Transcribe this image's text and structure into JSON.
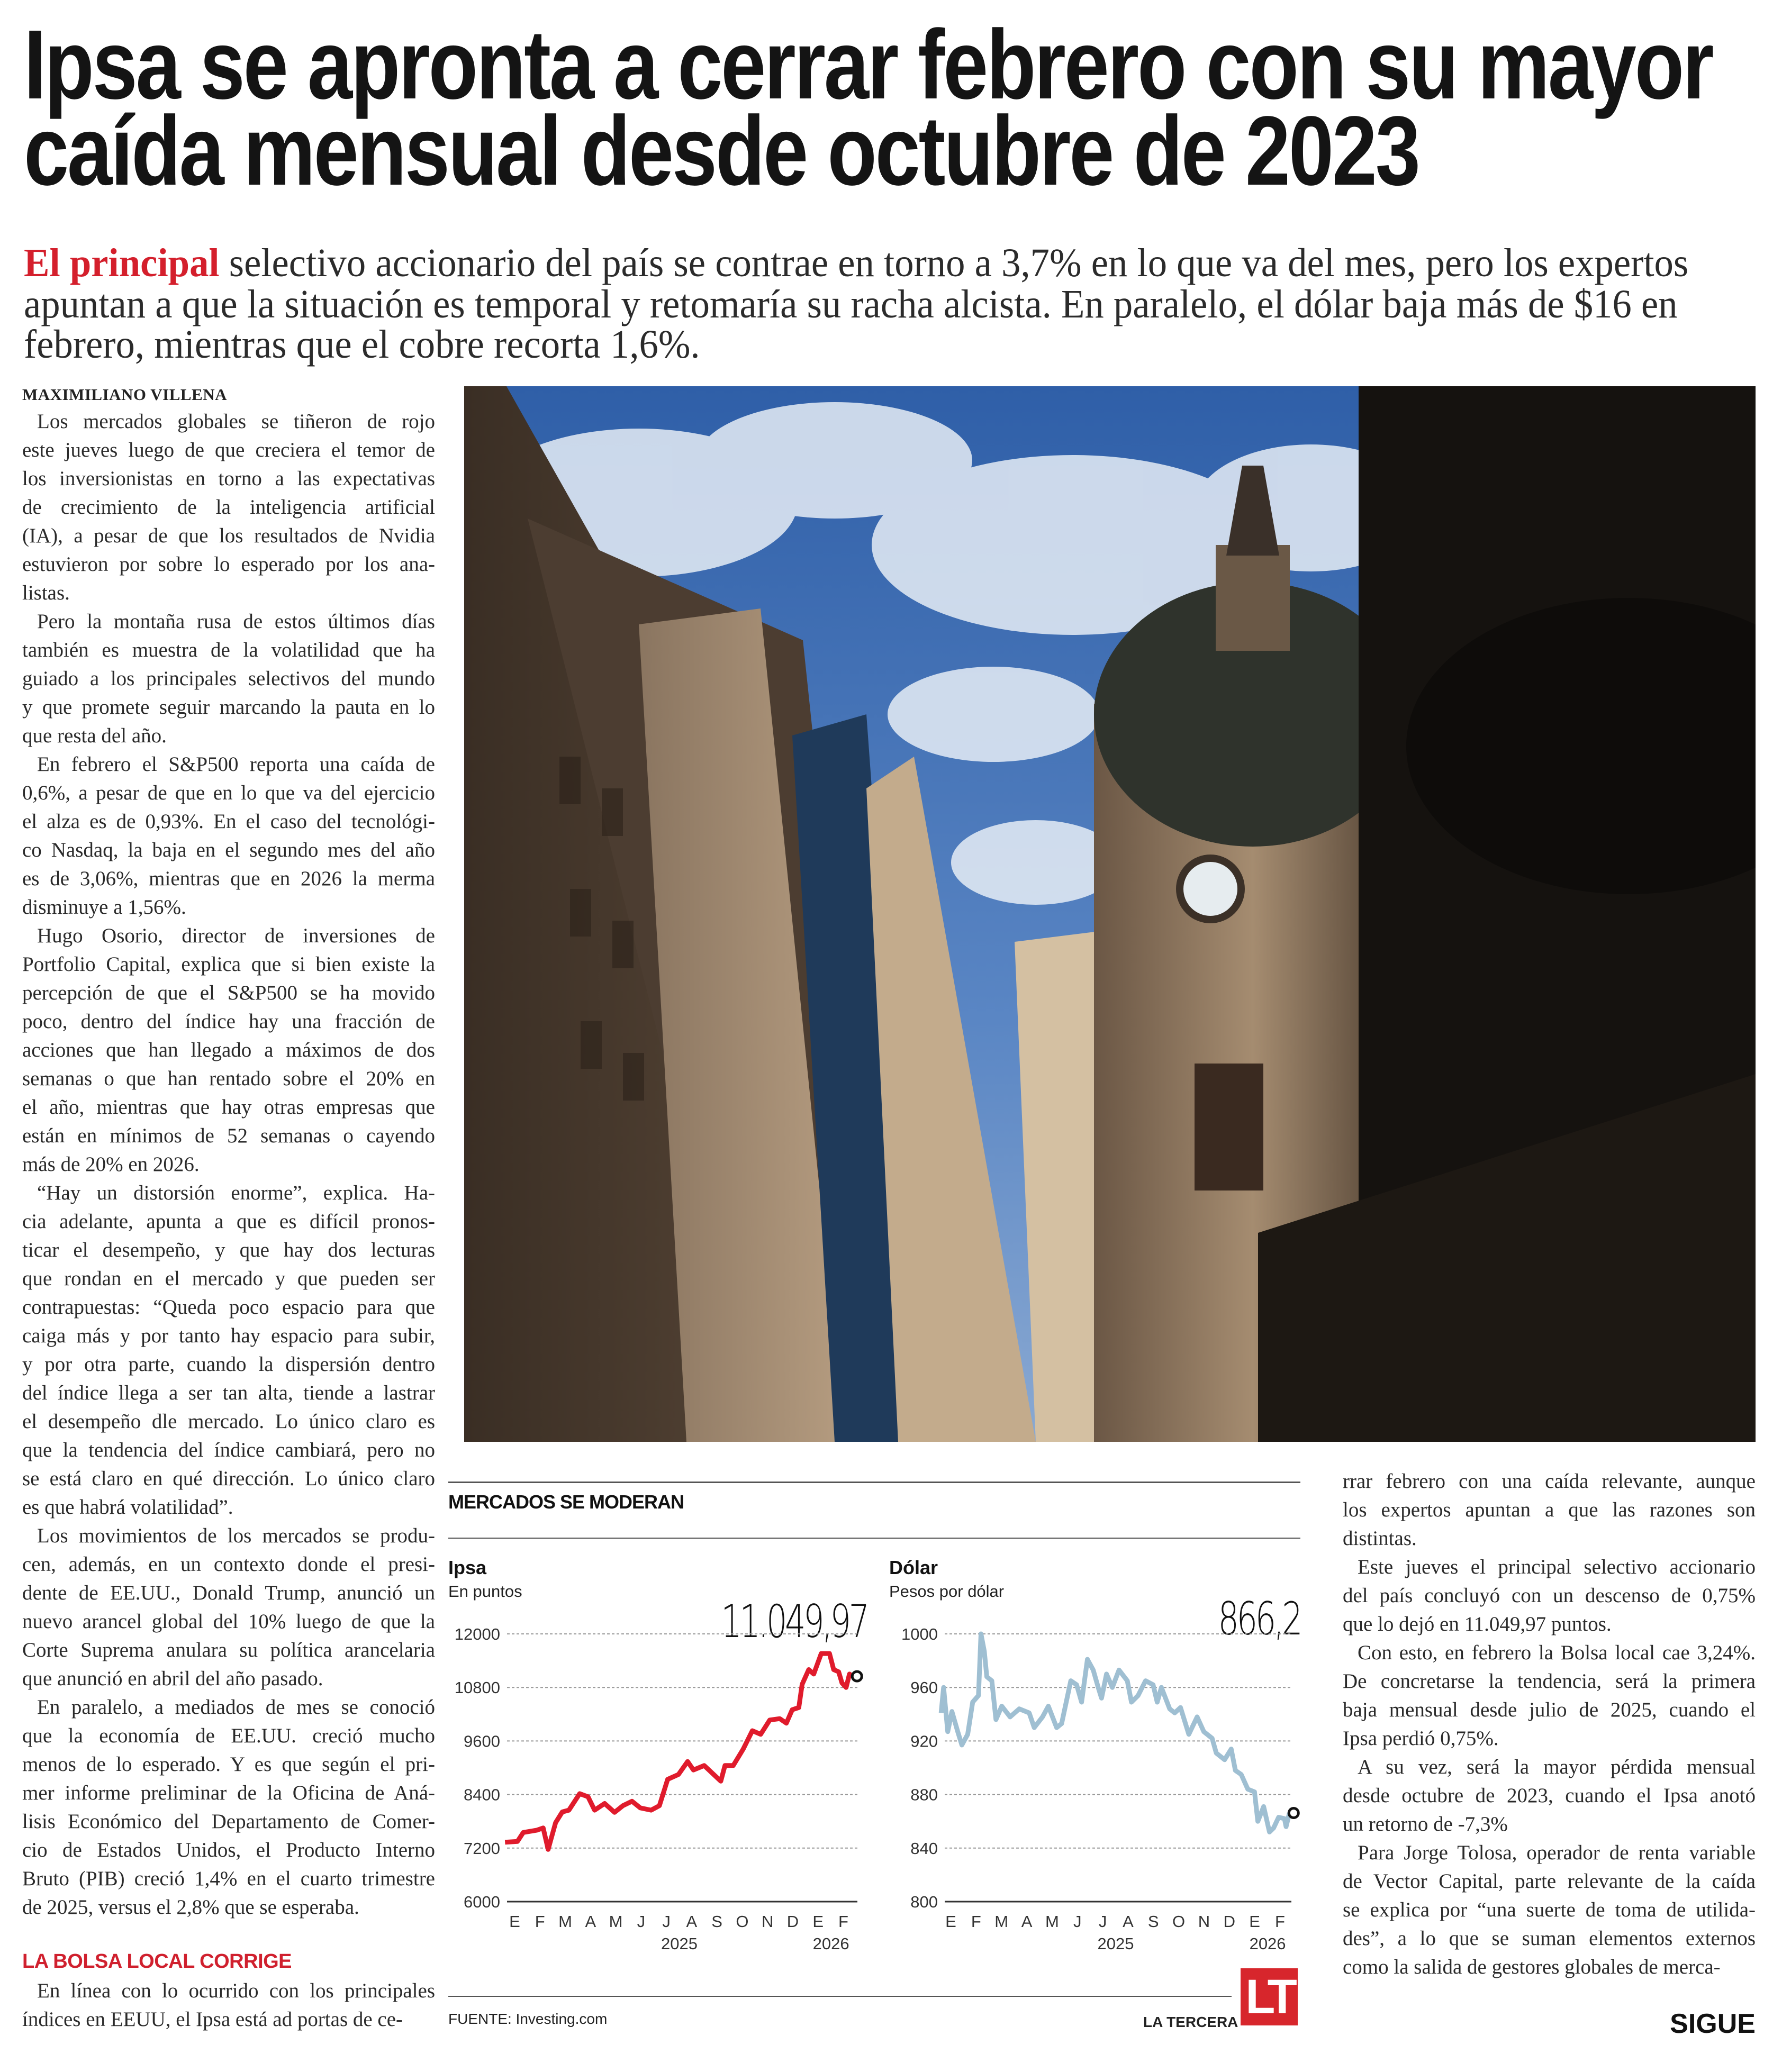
{
  "headline": {
    "lines": [
      "Ipsa se apronta a cerrar febrero con su mayor",
      "caída mensual desde octubre de 2023"
    ]
  },
  "subtitle": {
    "lead": "El principal",
    "lines": [
      " selectivo accionario del país se contrae en torno a 3,7% en lo que va del mes, pero los expertos",
      "apuntan a que la situación es temporal y retomaría su racha alcista. En paralelo, el dólar baja más de $16 en",
      "febrero, mientras que el cobre recorta 1,6%."
    ],
    "lead_color": "#d41f2c"
  },
  "byline": "MAXIMILIANO VILLENA",
  "left_column": [
    [
      "Los mercados globales se tiñeron de rojo",
      "este jueves luego de que creciera el temor de",
      "los inversionistas en torno a las expectativas",
      "de crecimiento de la inteligencia artificial",
      "(IA), a pesar de que los resultados de Nvidia",
      "estuvieron por sobre lo esperado por los ana-",
      "listas."
    ],
    [
      "Pero la montaña rusa de estos últimos días",
      "también es muestra de la volatilidad que ha",
      "guiado a los principales selectivos del mundo",
      "y que promete seguir marcando la pauta en lo",
      "que resta del año."
    ],
    [
      "En febrero el S&P500 reporta una caída de",
      "0,6%, a pesar de que en lo que va del ejercicio",
      "el alza es de 0,93%. En el caso del tecnológi-",
      "co Nasdaq, la baja en el segundo mes del año",
      "es de 3,06%, mientras que en 2026 la merma",
      "disminuye a 1,56%."
    ],
    [
      "Hugo Osorio, director de inversiones de",
      "Portfolio Capital, explica que si bien existe la",
      "percepción de que el S&P500 se ha movido",
      "poco, dentro del índice hay una fracción de",
      "acciones que han llegado a máximos de dos",
      "semanas o que han rentado sobre el 20% en",
      "el año, mientras que hay otras empresas que",
      "están en mínimos de 52 semanas o cayendo",
      "más de 20% en 2026."
    ],
    [
      "“Hay un distorsión enorme”, explica. Ha-",
      "cia adelante, apunta a que es difícil pronos-",
      "ticar el desempeño, y que hay dos lecturas",
      "que rondan en el mercado y que pueden ser",
      "contrapuestas: “Queda poco espacio para que",
      "caiga más y por tanto hay espacio para subir,",
      "y por otra parte, cuando la dispersión dentro",
      "del índice llega a ser tan alta, tiende a lastrar",
      "el desempeño dle mercado. Lo único claro es",
      "que la tendencia del índice cambiará, pero no",
      "se está claro en qué dirección. Lo único claro",
      "es que habrá volatilidad”."
    ],
    [
      "Los movimientos de los mercados se produ-",
      "cen, además, en un contexto donde el presi-",
      "dente de EE.UU., Donald Trump, anunció un",
      "nuevo arancel global del 10% luego de que la",
      "Corte Suprema anulara su política arancelaria",
      "que anunció en abril del año pasado."
    ],
    [
      "En paralelo, a mediados de mes se conoció",
      "que la economía de EE.UU. creció mucho",
      "menos de lo esperado. Y es que según el pri-",
      "mer informe preliminar de la Oficina de Aná-",
      "lisis Económico del Departamento de Comer-",
      "cio de Estados Unidos, el Producto Interno",
      "Bruto (PIB) creció 1,4% en el cuarto trimestre",
      "de 2025, versus el 2,8% que se esperaba."
    ]
  ],
  "subhead": "LA BOLSA LOCAL CORRIGE",
  "subhead_color": "#d0202e",
  "left_column_after_subhead": [
    [
      "En línea con lo ocurrido con los principales",
      "índices en EEUU, el Ipsa está ad portas de ce-"
    ]
  ],
  "right_column": [
    [
      "rrar febrero con una caída relevante, aunque",
      "los expertos apuntan a que las razones son",
      "distintas."
    ],
    [
      "Este jueves el principal selectivo accionario",
      "del país concluyó con un descenso de 0,75%",
      "que lo dejó en 11.049,97 puntos."
    ],
    [
      "Con esto, en febrero la Bolsa local cae 3,24%.",
      "De concretarse la tendencia, será la primera",
      "baja mensual desde julio de 2025, cuando el",
      "Ipsa perdió 0,75%."
    ],
    [
      "A su vez, será la mayor pérdida mensual",
      "desde octubre de 2023, cuando el Ipsa anotó",
      "un retorno de -7,3%"
    ],
    [
      "Para Jorge Tolosa, operador de renta variable",
      "de Vector Capital, parte relevante de la caída",
      "se explica por “una suerte de toma de utilida-",
      "des”, a lo que se suman elementos externos",
      "como la salida de gestores globales de merca-"
    ]
  ],
  "infographic": {
    "title": "MERCADOS SE MODERAN",
    "source": "FUENTE: Investing.com",
    "brand": "LA TERCERA",
    "logo_text": "LT",
    "logo_color": "#d7262c"
  },
  "chart_data": [
    {
      "type": "line",
      "title": "Ipsa",
      "subtitle": "En puntos",
      "latest_label": "11.049,97",
      "color": "#e01b2c",
      "ylim": [
        6000,
        12000
      ],
      "yticks": [
        "12000",
        "10800",
        "9600",
        "8400",
        "7200",
        "6000"
      ],
      "ytick_values": [
        12000,
        10800,
        9600,
        8400,
        7200,
        6000
      ],
      "xtick_labels": [
        "E",
        "F",
        "M",
        "A",
        "M",
        "J",
        "J",
        "A",
        "S",
        "O",
        "N",
        "D",
        "E",
        "F"
      ],
      "year_labels": [
        "2025",
        "2026"
      ],
      "grid": true,
      "x": [
        "2025-01-03",
        "2025-01-18",
        "2025-01-25",
        "2025-02-10",
        "2025-02-18",
        "2025-02-24",
        "2025-03-05",
        "2025-03-13",
        "2025-03-21",
        "2025-04-03",
        "2025-04-13",
        "2025-04-21",
        "2025-05-03",
        "2025-05-15",
        "2025-05-25",
        "2025-06-05",
        "2025-06-15",
        "2025-06-28",
        "2025-07-08",
        "2025-07-18",
        "2025-07-31",
        "2025-08-11",
        "2025-08-18",
        "2025-08-31",
        "2025-09-20",
        "2025-09-25",
        "2025-10-05",
        "2025-10-17",
        "2025-10-28",
        "2025-11-07",
        "2025-11-18",
        "2025-11-30",
        "2025-12-08",
        "2025-12-15",
        "2025-12-23",
        "2025-12-27",
        "2026-01-04",
        "2026-01-10",
        "2026-01-19",
        "2026-01-29",
        "2026-02-03",
        "2026-02-09",
        "2026-02-13",
        "2026-02-18",
        "2026-02-22",
        "2026-02-26"
      ],
      "y": [
        7330,
        7350,
        7550,
        7600,
        7650,
        7170,
        7770,
        8010,
        8050,
        8420,
        8350,
        8050,
        8200,
        8000,
        8150,
        8250,
        8100,
        8050,
        8150,
        8740,
        8850,
        9140,
        8950,
        9050,
        8700,
        9050,
        9050,
        9420,
        9830,
        9750,
        10070,
        10100,
        10000,
        10300,
        10350,
        10870,
        11200,
        11100,
        11560,
        11560,
        11200,
        11150,
        10900,
        10800,
        11100,
        11050
      ]
    },
    {
      "type": "line",
      "title": "Dólar",
      "subtitle": "Pesos por dólar",
      "latest_label": "866,2",
      "color": "#9fbfd2",
      "ylim": [
        800,
        1000
      ],
      "yticks": [
        "1000",
        "960",
        "920",
        "880",
        "840",
        "800"
      ],
      "ytick_values": [
        1000,
        960,
        920,
        880,
        840,
        800
      ],
      "xtick_labels": [
        "E",
        "F",
        "M",
        "A",
        "M",
        "J",
        "J",
        "A",
        "S",
        "O",
        "N",
        "D",
        "E",
        "F"
      ],
      "year_labels": [
        "2025",
        "2026"
      ],
      "grid": true,
      "x": [
        "2025-01-03",
        "2025-01-06",
        "2025-01-11",
        "2025-01-16",
        "2025-01-23",
        "2025-01-28",
        "2025-02-04",
        "2025-02-10",
        "2025-02-17",
        "2025-02-20",
        "2025-02-24",
        "2025-02-27",
        "2025-03-05",
        "2025-03-10",
        "2025-03-17",
        "2025-03-27",
        "2025-04-07",
        "2025-04-19",
        "2025-04-25",
        "2025-05-05",
        "2025-05-12",
        "2025-05-22",
        "2025-05-28",
        "2025-06-08",
        "2025-06-15",
        "2025-06-21",
        "2025-06-28",
        "2025-07-05",
        "2025-07-11",
        "2025-07-15",
        "2025-07-21",
        "2025-07-28",
        "2025-08-05",
        "2025-08-15",
        "2025-08-20",
        "2025-08-28",
        "2025-09-06",
        "2025-09-15",
        "2025-09-20",
        "2025-09-25",
        "2025-10-05",
        "2025-10-11",
        "2025-10-18",
        "2025-10-28",
        "2025-11-07",
        "2025-11-15",
        "2025-11-25",
        "2025-11-30",
        "2025-12-10",
        "2025-12-18",
        "2025-12-23",
        "2025-12-30",
        "2026-01-07",
        "2026-01-15",
        "2026-01-19",
        "2026-01-26",
        "2026-02-02",
        "2026-02-07",
        "2026-02-13",
        "2026-02-20",
        "2026-02-22",
        "2026-02-26"
      ],
      "y": [
        941,
        960,
        927,
        942,
        927,
        917,
        925,
        949,
        954,
        1000,
        987,
        968,
        965,
        936,
        946,
        938,
        944,
        941,
        930,
        938,
        946,
        930,
        933,
        965,
        962,
        949,
        981,
        973,
        960,
        952,
        970,
        960,
        973,
        965,
        949,
        954,
        965,
        962,
        949,
        960,
        944,
        941,
        945,
        925,
        938,
        927,
        922,
        911,
        906,
        914,
        898,
        895,
        884,
        882,
        860,
        871,
        852,
        855,
        863,
        862,
        856,
        866.2
      ]
    }
  ],
  "footer": {
    "continue_label": "SIGUE"
  }
}
